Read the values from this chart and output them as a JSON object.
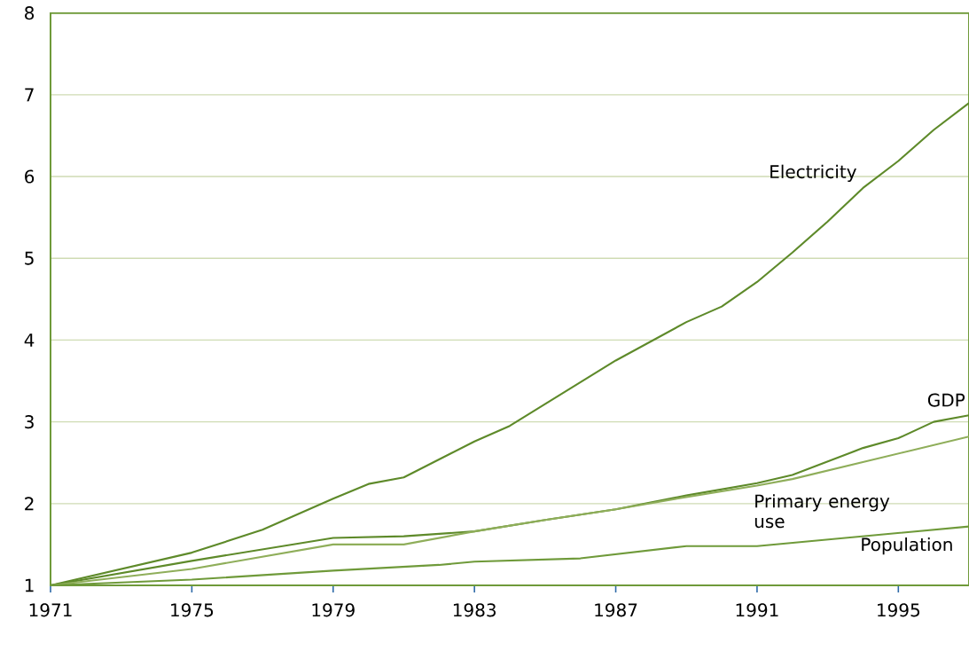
{
  "chart_data": {
    "type": "line",
    "xlim": [
      1971,
      1997
    ],
    "ylim": [
      1,
      8
    ],
    "xticks": [
      1971,
      1975,
      1979,
      1983,
      1987,
      1991,
      1995
    ],
    "yticks": [
      1,
      2,
      3,
      4,
      5,
      6,
      7,
      8
    ],
    "grid": "y",
    "marker": "none",
    "line_style": "solid",
    "series": [
      {
        "name": "Electricity",
        "color": "#5e8a2a",
        "x": [
          1971,
          1973,
          1975,
          1977,
          1978,
          1979,
          1980,
          1981,
          1983,
          1984,
          1987,
          1989,
          1990,
          1991,
          1992,
          1993,
          1994,
          1995,
          1996,
          1997
        ],
        "values": [
          1.0,
          1.2,
          1.4,
          1.68,
          1.87,
          2.06,
          2.24,
          2.32,
          2.76,
          2.95,
          3.75,
          4.22,
          4.41,
          4.71,
          5.07,
          5.45,
          5.86,
          6.19,
          6.57,
          6.9
        ]
      },
      {
        "name": "GDP",
        "color": "#5e8a2a",
        "x": [
          1971,
          1975,
          1979,
          1981,
          1983,
          1985,
          1987,
          1989,
          1991,
          1992,
          1994,
          1995,
          1996,
          1997
        ],
        "values": [
          1.0,
          1.3,
          1.58,
          1.6,
          1.66,
          1.8,
          1.93,
          2.1,
          2.25,
          2.35,
          2.68,
          2.8,
          3.0,
          3.08
        ]
      },
      {
        "name": "Primary energy use",
        "color": "#8fae5a",
        "x": [
          1971,
          1975,
          1979,
          1981,
          1983,
          1985,
          1987,
          1989,
          1991,
          1992,
          1997
        ],
        "values": [
          1.0,
          1.2,
          1.5,
          1.5,
          1.66,
          1.8,
          1.93,
          2.08,
          2.22,
          2.3,
          2.82
        ]
      },
      {
        "name": "Population",
        "color": "#6f9a3a",
        "x": [
          1971,
          1975,
          1979,
          1982,
          1983,
          1986,
          1989,
          1991,
          1997
        ],
        "values": [
          1.0,
          1.07,
          1.18,
          1.25,
          1.29,
          1.33,
          1.48,
          1.48,
          1.72
        ]
      }
    ]
  }
}
